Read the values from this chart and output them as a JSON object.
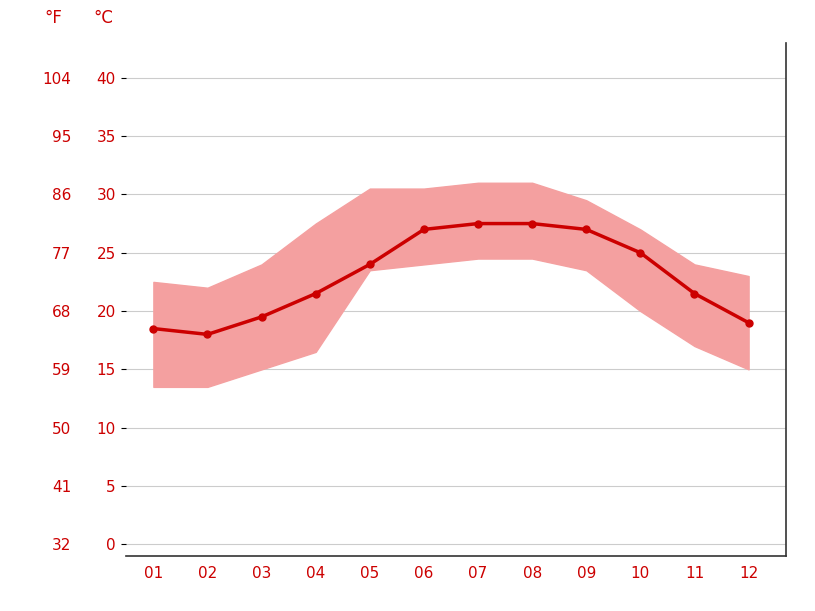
{
  "months": [
    1,
    2,
    3,
    4,
    5,
    6,
    7,
    8,
    9,
    10,
    11,
    12
  ],
  "month_labels": [
    "01",
    "02",
    "03",
    "04",
    "05",
    "06",
    "07",
    "08",
    "09",
    "10",
    "11",
    "12"
  ],
  "avg_temp_c": [
    18.5,
    18.0,
    19.5,
    21.5,
    24.0,
    27.0,
    27.5,
    27.5,
    27.0,
    25.0,
    21.5,
    19.0
  ],
  "max_temp_c": [
    22.5,
    22.0,
    24.0,
    27.5,
    30.5,
    30.5,
    31.0,
    31.0,
    29.5,
    27.0,
    24.0,
    23.0
  ],
  "min_temp_c": [
    13.5,
    13.5,
    15.0,
    16.5,
    23.5,
    24.0,
    24.5,
    24.5,
    23.5,
    20.0,
    17.0,
    15.0
  ],
  "line_color": "#cc0000",
  "band_color": "#f4a0a0",
  "grid_color": "#cccccc",
  "axis_color": "#cc0000",
  "tick_color": "#cc0000",
  "y_ticks_c": [
    0,
    5,
    10,
    15,
    20,
    25,
    30,
    35,
    40
  ],
  "y_ticks_f": [
    32,
    41,
    50,
    59,
    68,
    77,
    86,
    95,
    104
  ],
  "ylim": [
    -1,
    43
  ],
  "xlim": [
    0.5,
    12.7
  ],
  "background_color": "#ffffff",
  "label_f": "°F",
  "label_c": "°C",
  "spine_color": "#333333",
  "fontsize_ticks": 11,
  "fontsize_labels": 12
}
